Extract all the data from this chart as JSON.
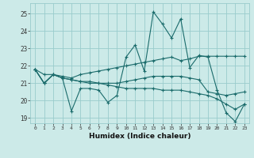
{
  "xlabel": "Humidex (Indice chaleur)",
  "ylabel": "",
  "xlim": [
    -0.5,
    23.5
  ],
  "ylim": [
    18.7,
    25.6
  ],
  "yticks": [
    19,
    20,
    21,
    22,
    23,
    24,
    25
  ],
  "xticks": [
    0,
    1,
    2,
    3,
    4,
    5,
    6,
    7,
    8,
    9,
    10,
    11,
    12,
    13,
    14,
    15,
    16,
    17,
    18,
    19,
    20,
    21,
    22,
    23
  ],
  "bg_color": "#cceae8",
  "grid_color": "#99cccc",
  "line_color": "#1a6b6b",
  "lines": [
    [
      21.8,
      21.0,
      21.5,
      21.3,
      19.4,
      20.7,
      20.7,
      20.6,
      19.9,
      20.3,
      22.5,
      23.2,
      21.7,
      25.1,
      24.4,
      23.6,
      24.7,
      21.9,
      22.6,
      22.5,
      20.6,
      19.3,
      18.8,
      19.8
    ],
    [
      21.8,
      21.5,
      21.5,
      21.4,
      21.3,
      21.5,
      21.6,
      21.7,
      21.8,
      21.9,
      22.0,
      22.1,
      22.2,
      22.3,
      22.4,
      22.5,
      22.3,
      22.4,
      22.55,
      22.55,
      22.55,
      22.55,
      22.55,
      22.55
    ],
    [
      21.8,
      21.0,
      21.5,
      21.3,
      21.2,
      21.1,
      21.1,
      21.0,
      21.0,
      21.0,
      21.1,
      21.2,
      21.3,
      21.4,
      21.4,
      21.4,
      21.4,
      21.3,
      21.2,
      20.5,
      20.4,
      20.3,
      20.4,
      20.5
    ],
    [
      21.8,
      21.0,
      21.5,
      21.3,
      21.2,
      21.1,
      21.0,
      21.0,
      20.9,
      20.8,
      20.7,
      20.7,
      20.7,
      20.7,
      20.6,
      20.6,
      20.6,
      20.5,
      20.4,
      20.3,
      20.1,
      19.8,
      19.5,
      19.8
    ]
  ]
}
